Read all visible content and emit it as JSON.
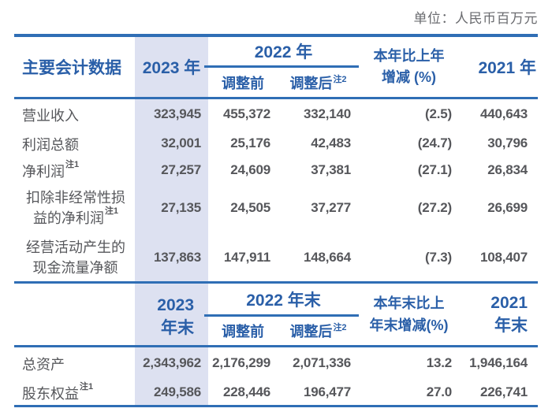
{
  "unit_note": "单位：人民币百万元",
  "colors": {
    "accent_blue_text": "#2a5fa8",
    "rule_blue": "#2f6eb5",
    "highlight_column": "#dde1f1",
    "body_text_grey": "#56575b",
    "note_grey": "#6a6b6f"
  },
  "table1": {
    "header": {
      "title": "主要会计数据",
      "col_2023": "2023 年",
      "col_2022_group": "2022 年",
      "col_adj_before": "调整前",
      "col_adj_after": "调整后",
      "col_adj_after_sup": "注2",
      "col_change_line1": "本年比上年",
      "col_change_line2": "增减 (%)",
      "col_2021": "2021 年"
    },
    "rows": [
      {
        "label": "营业收入",
        "sup": "",
        "values": [
          "323,945",
          "455,372",
          "332,140",
          "(2.5)",
          "440,643"
        ]
      },
      {
        "label": "利润总额",
        "sup": "",
        "values": [
          "32,001",
          "25,176",
          "42,483",
          "(24.7)",
          "30,796"
        ]
      },
      {
        "label": "净利润",
        "sup": "注1",
        "values": [
          "27,257",
          "24,609",
          "37,381",
          "(27.1)",
          "26,834"
        ]
      },
      {
        "label": "扣除非经常性损益的净利润",
        "sup": "注1",
        "values": [
          "27,135",
          "24,505",
          "37,277",
          "(27.2)",
          "26,699"
        ]
      },
      {
        "label": "经营活动产生的现金流量净额",
        "sup": "",
        "values": [
          "137,863",
          "147,911",
          "148,664",
          "(7.3)",
          "108,407"
        ]
      }
    ]
  },
  "table2": {
    "header": {
      "col_2023_line1": "2023",
      "col_2023_line2": "年末",
      "col_2022_group": "2022 年末",
      "col_adj_before": "调整前",
      "col_adj_after": "调整后",
      "col_adj_after_sup": "注2",
      "col_change_line1": "本年末比上",
      "col_change_line2": "年末增减(%)",
      "col_2021_line1": "2021",
      "col_2021_line2": "年末"
    },
    "rows": [
      {
        "label": "总资产",
        "sup": "",
        "values": [
          "2,343,962",
          "2,176,299",
          "2,071,336",
          "13.2",
          "1,946,164"
        ]
      },
      {
        "label": "股东权益",
        "sup": "注1",
        "values": [
          "249,586",
          "228,446",
          "196,477",
          "27.0",
          "226,741"
        ]
      }
    ]
  }
}
